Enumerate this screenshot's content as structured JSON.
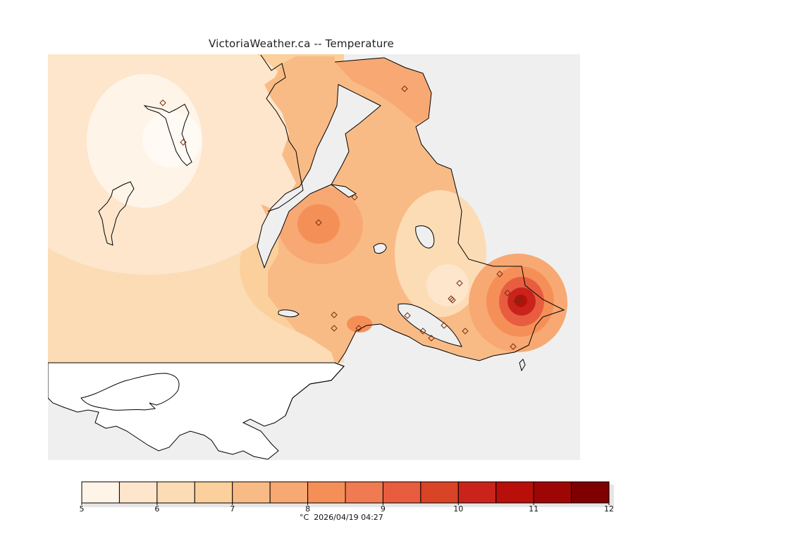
{
  "title": "VictoriaWeather.ca -- Temperature",
  "caption": {
    "unit": "°C",
    "timestamp": "2026/04/19 04:27"
  },
  "colorbar": {
    "ticks": [
      "5",
      "6",
      "7",
      "8",
      "9",
      "10",
      "11",
      "12"
    ],
    "colors": [
      "#fff4e8",
      "#fde6cc",
      "#fcdcb5",
      "#fbd09c",
      "#f9bb86",
      "#f8a872",
      "#f58f58",
      "#f07a52",
      "#e85d40",
      "#d94326",
      "#c9231b",
      "#b80f0a",
      "#9e0606",
      "#7f0000"
    ]
  },
  "colors": {
    "water": "#efefef",
    "land_outside": "#ffffff",
    "coastline": "#000000",
    "station": "#7a2e10"
  },
  "stations": {
    "count": 22
  }
}
